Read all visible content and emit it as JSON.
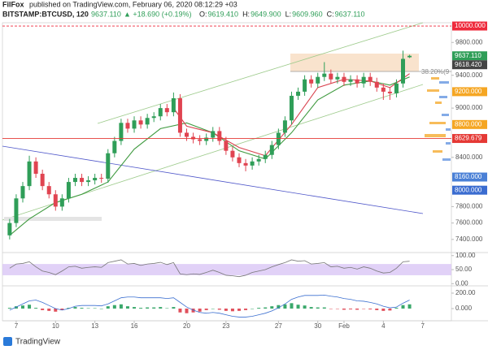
{
  "header": {
    "author": "FilFox",
    "published": "published on TradingView.com, February 06, 2020 08:12:29 +03",
    "symbol": "BITSTAMP:BTCUSD, 120",
    "last": "9637.110",
    "change": "▲ +18.690 (+0.19%)",
    "ohlc": [
      {
        "key": "O:",
        "value": "9619.410"
      },
      {
        "key": "H:",
        "value": "9649.900"
      },
      {
        "key": "L:",
        "value": "9609.960"
      },
      {
        "key": "C:",
        "value": "9637.110"
      }
    ]
  },
  "footer": {
    "brand": "TradingView"
  },
  "chart_data": {
    "type": "candlestick",
    "up_color": "#2f9e58",
    "down_color": "#e04451",
    "x": [
      6.5,
      7,
      7.5,
      8,
      8.5,
      9,
      9.5,
      10,
      10.5,
      11,
      11.5,
      12,
      12.5,
      13,
      13.5,
      14,
      14.5,
      15,
      15.5,
      16,
      16.5,
      17,
      17.5,
      18,
      18.5,
      19,
      19.5,
      20,
      20.5,
      21,
      21.5,
      22,
      22.5,
      23,
      23.5,
      24,
      24.5,
      25,
      25.5,
      26,
      26.5,
      27,
      27.5,
      28,
      28.5,
      29,
      29.5,
      30,
      30.5,
      31,
      31.5,
      32,
      32.5,
      33,
      33.5,
      34,
      34.5,
      35,
      35.5,
      36,
      36.5,
      37
    ],
    "open": [
      7450,
      7600,
      7900,
      8050,
      8350,
      8200,
      8050,
      7950,
      7800,
      7900,
      8100,
      8150,
      8100,
      8120,
      8150,
      8140,
      8450,
      8600,
      8820,
      8750,
      8850,
      8800,
      8880,
      8900,
      9000,
      8950,
      9120,
      8700,
      8650,
      8620,
      8600,
      8640,
      8720,
      8600,
      8480,
      8400,
      8330,
      8300,
      8350,
      8380,
      8430,
      8550,
      8700,
      8850,
      9150,
      9200,
      9350,
      9300,
      9380,
      9420,
      9350,
      9380,
      9320,
      9350,
      9300,
      9380,
      9320,
      9250,
      9200,
      9180,
      9300,
      9619.41
    ],
    "high": [
      7650,
      7950,
      8100,
      8420,
      8400,
      8250,
      8100,
      8000,
      7950,
      8150,
      8200,
      8200,
      8170,
      8200,
      8200,
      8500,
      8650,
      8870,
      8870,
      8900,
      8900,
      8930,
      8950,
      9050,
      9050,
      9190,
      9170,
      8750,
      8700,
      8670,
      8690,
      8770,
      8770,
      8650,
      8530,
      8450,
      8380,
      8400,
      8430,
      8480,
      8600,
      8750,
      8900,
      9200,
      9250,
      9400,
      9400,
      9430,
      9560,
      9470,
      9430,
      9430,
      9400,
      9400,
      9430,
      9430,
      9370,
      9300,
      9250,
      9350,
      9700,
      9649.9
    ],
    "low": [
      7400,
      7550,
      7850,
      8000,
      8150,
      8000,
      7900,
      7750,
      7750,
      7850,
      8050,
      8050,
      8050,
      8070,
      8090,
      8090,
      8400,
      8550,
      8700,
      8700,
      8750,
      8750,
      8830,
      8850,
      8900,
      8900,
      8650,
      8600,
      8570,
      8550,
      8550,
      8590,
      8550,
      8430,
      8350,
      8280,
      8230,
      8250,
      8300,
      8330,
      8380,
      8500,
      8650,
      8800,
      9100,
      9150,
      9250,
      9250,
      9330,
      9300,
      9300,
      9270,
      9270,
      9250,
      9250,
      9270,
      9200,
      9100,
      9100,
      9130,
      9250,
      9609.96
    ],
    "close": [
      7600,
      7900,
      8050,
      8350,
      8200,
      8050,
      7950,
      7800,
      7900,
      8100,
      8150,
      8100,
      8120,
      8150,
      8140,
      8450,
      8600,
      8820,
      8750,
      8850,
      8800,
      8880,
      8900,
      9000,
      8950,
      9120,
      8700,
      8650,
      8620,
      8600,
      8640,
      8720,
      8600,
      8480,
      8400,
      8330,
      8300,
      8350,
      8380,
      8430,
      8550,
      8700,
      8850,
      9150,
      9200,
      9350,
      9300,
      9380,
      9420,
      9350,
      9380,
      9320,
      9350,
      9300,
      9380,
      9320,
      9250,
      9200,
      9180,
      9300,
      9600,
      9637.11
    ],
    "xlim": [
      5.95,
      40.19
    ],
    "xticks": [
      7,
      10,
      13,
      16,
      20,
      23,
      27,
      30,
      {
        "value": 32,
        "label": "Feb"
      },
      {
        "value": 35,
        "label": "4"
      },
      {
        "value": 38,
        "label": "7"
      }
    ],
    "ylim": [
      7250,
      10040
    ],
    "yticks": [
      {
        "value": 9800,
        "label": "9800.000"
      },
      {
        "value": 9400,
        "label": "9400.000"
      },
      {
        "value": 9000,
        "label": "9000.000"
      },
      {
        "value": 8400,
        "label": "8400.000"
      },
      {
        "value": 7800,
        "label": "7800.000"
      },
      {
        "value": 7600,
        "label": "7600.000"
      },
      {
        "value": 7400,
        "label": "7400.000"
      }
    ],
    "price_labels": [
      {
        "value": 10000,
        "label": "10000.000",
        "color": "#ee2a3b",
        "line": "dashed"
      },
      {
        "value": 9637.11,
        "label": "9637.110",
        "color": "#2f9e58"
      },
      {
        "value": 9618.42,
        "label": "9618.420",
        "color": "#444444"
      },
      {
        "value": 9200,
        "label": "9200.000",
        "color": "#f5a623"
      },
      {
        "value": 8800,
        "label": "8800.000",
        "color": "#f5a623"
      },
      {
        "value": 8629.679,
        "label": "8629.679",
        "color": "#e53935",
        "line": "solid"
      },
      {
        "value": 8160,
        "label": "8160.000",
        "color": "#4a80d6"
      },
      {
        "value": 8000,
        "label": "8000.000",
        "color": "#3a6cd0"
      }
    ],
    "annotation": "38.20%(9",
    "overlays": [
      {
        "color": "#3f9a3f",
        "x": [
          6.5,
          8,
          10,
          12,
          14,
          16,
          18,
          20,
          22,
          24,
          26,
          28,
          30,
          32,
          34,
          35.5,
          37
        ],
        "values": [
          7450,
          7650,
          7850,
          7950,
          8100,
          8500,
          8750,
          8820,
          8700,
          8480,
          8380,
          8700,
          9100,
          9280,
          9330,
          9280,
          9380
        ]
      },
      {
        "color": "#d9434f",
        "x": [
          19,
          20,
          22,
          24,
          26,
          28,
          30,
          32,
          34,
          35.5,
          37
        ],
        "values": [
          9000,
          8780,
          8700,
          8520,
          8420,
          8800,
          9250,
          9350,
          9330,
          9250,
          9420
        ]
      }
    ],
    "rsi": {
      "type": "line",
      "color": "#777777",
      "band_color": "#d9c6f5",
      "band": [
        30,
        70
      ],
      "ylim": [
        -2,
        108
      ],
      "yticks": [
        {
          "value": 100,
          "label": "100.00"
        },
        {
          "value": 50,
          "label": "50.00"
        },
        {
          "value": 0,
          "label": "0.00"
        }
      ],
      "values": [
        55,
        70,
        72,
        78,
        60,
        45,
        40,
        32,
        45,
        60,
        62,
        55,
        58,
        60,
        58,
        75,
        80,
        85,
        70,
        72,
        65,
        70,
        72,
        76,
        68,
        75,
        35,
        32,
        35,
        33,
        40,
        48,
        40,
        30,
        28,
        25,
        30,
        40,
        45,
        50,
        60,
        68,
        75,
        85,
        80,
        82,
        70,
        72,
        75,
        60,
        62,
        55,
        58,
        52,
        60,
        55,
        45,
        38,
        40,
        55,
        78,
        80
      ]
    },
    "macd": {
      "type": "bar",
      "colors": [
        "#3aa86b",
        "#e0505c"
      ],
      "line_color": "#3b6fd0",
      "ylim": [
        -158,
        284
      ],
      "yticks": [
        {
          "value": 200,
          "label": "200.00"
        },
        {
          "value": 0,
          "label": "0.000"
        }
      ],
      "histogram": [
        10,
        30,
        40,
        50,
        10,
        -20,
        -30,
        -40,
        -20,
        10,
        20,
        10,
        5,
        5,
        0,
        30,
        45,
        55,
        30,
        20,
        10,
        15,
        15,
        20,
        5,
        20,
        -50,
        -60,
        -50,
        -40,
        -20,
        0,
        -15,
        -30,
        -35,
        -30,
        -20,
        0,
        10,
        15,
        30,
        45,
        55,
        70,
        50,
        40,
        20,
        15,
        15,
        -5,
        -5,
        -15,
        -10,
        -15,
        -5,
        -10,
        -20,
        -30,
        -25,
        10,
        45,
        55
      ],
      "line": [
        -20,
        20,
        60,
        100,
        110,
        80,
        40,
        0,
        -20,
        0,
        30,
        40,
        40,
        40,
        35,
        60,
        100,
        140,
        150,
        150,
        140,
        140,
        140,
        140,
        130,
        140,
        80,
        20,
        -20,
        -50,
        -60,
        -50,
        -60,
        -80,
        -100,
        -110,
        -110,
        -100,
        -80,
        -60,
        -30,
        10,
        60,
        120,
        150,
        170,
        170,
        170,
        175,
        160,
        150,
        130,
        120,
        100,
        95,
        80,
        60,
        30,
        10,
        20,
        70,
        110
      ]
    }
  }
}
